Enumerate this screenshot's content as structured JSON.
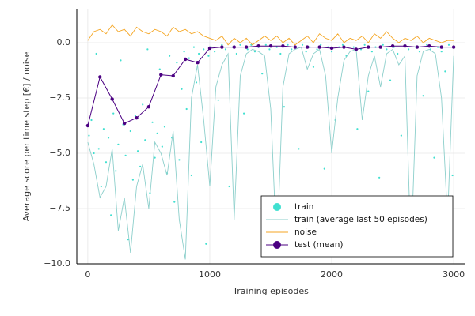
{
  "chart_data": {
    "type": "scatter",
    "x_label": "Training episodes",
    "y_label": "Average score per time step [€] / noise",
    "xlim": [
      -90,
      3090
    ],
    "ylim": [
      -10,
      1.5
    ],
    "xticks": [
      0,
      1000,
      2000,
      3000
    ],
    "yticks": [
      {
        "value": -10,
        "label": "−10.0"
      },
      {
        "value": -7.5,
        "label": "−7.5"
      },
      {
        "value": -5,
        "label": "−5.0"
      },
      {
        "value": -2.5,
        "label": "−2.5"
      },
      {
        "value": 0,
        "label": "0.0"
      }
    ],
    "grid": true,
    "legend": "bottom right",
    "series": [
      {
        "name": "train",
        "type": "scatter",
        "color": "#40e0d0",
        "x": [
          10,
          30,
          50,
          70,
          90,
          110,
          130,
          150,
          170,
          190,
          210,
          230,
          250,
          270,
          290,
          310,
          330,
          350,
          370,
          390,
          410,
          430,
          450,
          470,
          490,
          510,
          530,
          550,
          570,
          590,
          610,
          630,
          650,
          670,
          690,
          710,
          730,
          750,
          770,
          790,
          810,
          830,
          850,
          870,
          890,
          910,
          930,
          950,
          970,
          990,
          1010,
          1040,
          1070,
          1100,
          1130,
          1160,
          1190,
          1220,
          1250,
          1280,
          1310,
          1340,
          1370,
          1400,
          1430,
          1460,
          1490,
          1520,
          1550,
          1580,
          1610,
          1640,
          1670,
          1700,
          1730,
          1760,
          1790,
          1820,
          1850,
          1880,
          1910,
          1940,
          1970,
          2000,
          2030,
          2060,
          2090,
          2120,
          2150,
          2180,
          2210,
          2240,
          2270,
          2300,
          2330,
          2360,
          2390,
          2420,
          2450,
          2480,
          2510,
          2540,
          2570,
          2600,
          2630,
          2660,
          2690,
          2720,
          2750,
          2780,
          2810,
          2840,
          2870,
          2900,
          2930,
          2960,
          2990
        ],
        "values": [
          -4.2,
          -3.5,
          -5.0,
          -0.5,
          -4.8,
          -6.5,
          -3.9,
          -5.4,
          -4.3,
          -7.8,
          -3.2,
          -5.8,
          -4.6,
          -0.8,
          -3.7,
          -5.1,
          -8.9,
          -4.0,
          -6.2,
          -3.3,
          -4.9,
          -5.6,
          -2.8,
          -4.4,
          -0.3,
          -6.8,
          -3.6,
          -5.2,
          -4.1,
          -1.2,
          -4.7,
          -3.8,
          -5.9,
          -0.6,
          -4.3,
          -7.2,
          -0.9,
          -5.3,
          -2.1,
          -0.4,
          -3.0,
          -0.7,
          -6.0,
          -0.2,
          -1.8,
          -0.5,
          -4.5,
          -0.3,
          -9.1,
          -0.6,
          -0.2,
          -0.4,
          -2.6,
          -0.1,
          -0.3,
          -6.5,
          -0.2,
          -0.5,
          -0.1,
          -3.2,
          -0.3,
          -0.1,
          -0.4,
          -0.2,
          -1.4,
          -0.1,
          -0.3,
          -7.4,
          -0.2,
          -0.5,
          -2.9,
          -0.1,
          -0.3,
          -0.2,
          -4.8,
          -0.1,
          -0.4,
          -0.2,
          -1.1,
          -0.3,
          -0.1,
          -5.7,
          -0.2,
          -0.4,
          -3.5,
          -0.2,
          -0.1,
          -0.6,
          -8.3,
          -0.2,
          -3.9,
          -0.3,
          -0.1,
          -2.2,
          -0.4,
          -0.2,
          -6.1,
          -0.1,
          -0.3,
          -1.7,
          -0.2,
          -0.5,
          -4.2,
          -0.1,
          -0.3,
          -9.0,
          -0.2,
          -0.4,
          -2.4,
          -0.1,
          -0.3,
          -5.2,
          -0.2,
          -0.4,
          -1.3,
          -0.1,
          -6.0
        ]
      },
      {
        "name": "train (average last 50 episodes)",
        "type": "line",
        "color": "#8ccfcb",
        "x": [
          0,
          50,
          100,
          150,
          200,
          250,
          300,
          350,
          400,
          450,
          500,
          550,
          600,
          650,
          700,
          750,
          800,
          850,
          900,
          950,
          1000,
          1050,
          1100,
          1150,
          1200,
          1250,
          1300,
          1350,
          1400,
          1450,
          1500,
          1550,
          1600,
          1650,
          1700,
          1750,
          1800,
          1850,
          1900,
          1950,
          2000,
          2050,
          2100,
          2150,
          2200,
          2250,
          2300,
          2350,
          2400,
          2450,
          2500,
          2550,
          2600,
          2650,
          2700,
          2750,
          2800,
          2850,
          2900,
          2950,
          3000
        ],
        "values": [
          -4.5,
          -5.5,
          -7.0,
          -6.5,
          -4.8,
          -8.5,
          -7.0,
          -9.5,
          -6.5,
          -5.5,
          -7.5,
          -4.5,
          -5.0,
          -6.0,
          -4.0,
          -8.0,
          -9.8,
          -2.5,
          -1.0,
          -3.5,
          -6.5,
          -2.0,
          -1.0,
          -0.5,
          -8.0,
          -1.5,
          -0.5,
          -0.3,
          -0.4,
          -0.6,
          -3.0,
          -9.5,
          -2.0,
          -0.5,
          -0.3,
          -0.2,
          -1.2,
          -0.5,
          -0.3,
          -1.5,
          -5.0,
          -2.5,
          -0.8,
          -0.4,
          -0.3,
          -3.5,
          -1.5,
          -0.6,
          -2.0,
          -0.5,
          -0.3,
          -1.0,
          -0.6,
          -9.5,
          -1.5,
          -0.4,
          -0.3,
          -0.5,
          -2.5,
          -8.0,
          -0.6
        ]
      },
      {
        "name": "noise",
        "type": "line",
        "color": "#f5a623",
        "x": [
          0,
          50,
          100,
          150,
          200,
          250,
          300,
          350,
          400,
          450,
          500,
          550,
          600,
          650,
          700,
          750,
          800,
          850,
          900,
          950,
          1000,
          1050,
          1100,
          1150,
          1200,
          1250,
          1300,
          1350,
          1400,
          1450,
          1500,
          1550,
          1600,
          1650,
          1700,
          1750,
          1800,
          1850,
          1900,
          1950,
          2000,
          2050,
          2100,
          2150,
          2200,
          2250,
          2300,
          2350,
          2400,
          2450,
          2500,
          2550,
          2600,
          2650,
          2700,
          2750,
          2800,
          2850,
          2900,
          2950,
          3000
        ],
        "values": [
          0.1,
          0.5,
          0.6,
          0.4,
          0.8,
          0.5,
          0.6,
          0.3,
          0.7,
          0.5,
          0.4,
          0.6,
          0.5,
          0.3,
          0.7,
          0.5,
          0.6,
          0.4,
          0.5,
          0.3,
          0.2,
          0.1,
          0.3,
          -0.1,
          0.2,
          0.0,
          0.2,
          -0.1,
          0.1,
          0.3,
          0.1,
          0.3,
          0.0,
          0.2,
          -0.1,
          0.1,
          0.3,
          0.0,
          0.4,
          0.2,
          0.1,
          0.4,
          0.0,
          0.2,
          0.1,
          0.3,
          0.0,
          0.4,
          0.2,
          0.5,
          0.2,
          0.0,
          0.2,
          0.1,
          0.3,
          0.0,
          0.2,
          0.1,
          0.0,
          0.1,
          0.1
        ]
      },
      {
        "name": "test (mean)",
        "type": "line-markers",
        "color": "#4b0082",
        "x": [
          0,
          100,
          200,
          300,
          400,
          500,
          600,
          700,
          800,
          900,
          1000,
          1100,
          1200,
          1300,
          1400,
          1500,
          1600,
          1700,
          1800,
          1900,
          2000,
          2100,
          2200,
          2300,
          2400,
          2500,
          2600,
          2700,
          2800,
          2900,
          3000
        ],
        "values": [
          -3.75,
          -1.55,
          -2.55,
          -3.65,
          -3.4,
          -2.9,
          -1.45,
          -1.5,
          -0.75,
          -0.9,
          -0.25,
          -0.2,
          -0.2,
          -0.2,
          -0.15,
          -0.15,
          -0.15,
          -0.2,
          -0.2,
          -0.2,
          -0.25,
          -0.2,
          -0.3,
          -0.2,
          -0.2,
          -0.15,
          -0.15,
          -0.2,
          -0.15,
          -0.2,
          -0.2
        ]
      }
    ]
  }
}
